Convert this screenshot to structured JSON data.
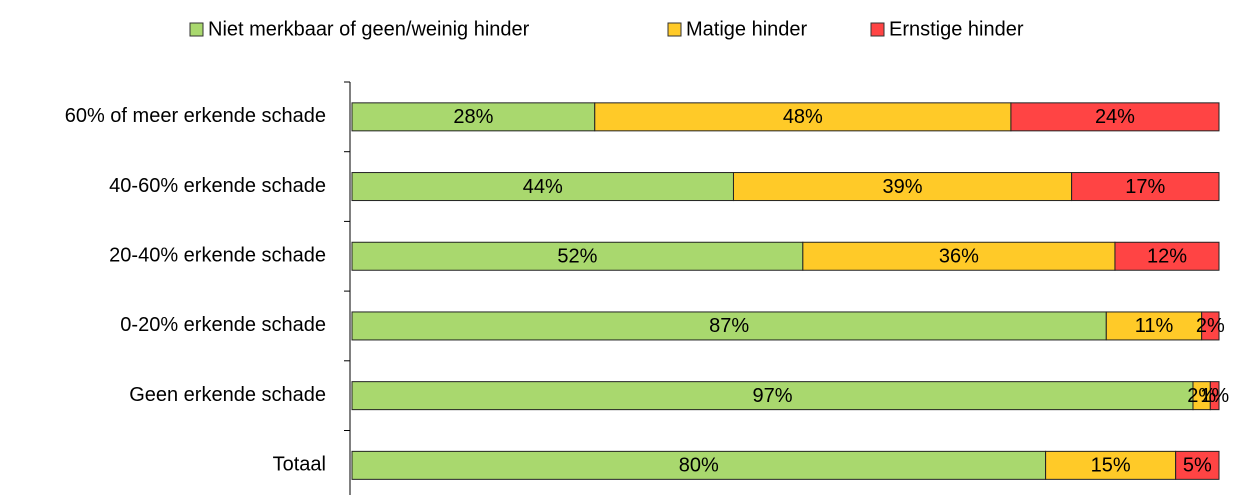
{
  "chart_data": {
    "type": "bar",
    "orientation": "horizontal",
    "stacked": true,
    "categories": [
      "60% of meer erkende schade",
      "40-60% erkende schade",
      "20-40% erkende schade",
      "0-20% erkende schade",
      "Geen erkende schade",
      "Totaal"
    ],
    "series": [
      {
        "name": "Niet merkbaar of geen/weinig hinder",
        "color": "#a9d86e",
        "values": [
          28,
          44,
          52,
          87,
          97,
          80
        ],
        "value_labels": [
          "28%",
          "44%",
          "52%",
          "87%",
          "97%",
          "80%"
        ]
      },
      {
        "name": "Matige hinder",
        "color": "#ffca28",
        "values": [
          48,
          39,
          36,
          11,
          2,
          15
        ],
        "value_labels": [
          "48%",
          "39%",
          "36%",
          "11%",
          "2%",
          "15%"
        ]
      },
      {
        "name": "Ernstige hinder",
        "color": "#ff4444",
        "values": [
          24,
          17,
          12,
          2,
          1,
          5
        ],
        "value_labels": [
          "24%",
          "17%",
          "12%",
          "2%",
          "1%",
          "5%"
        ]
      }
    ],
    "xlim": [
      0,
      100
    ],
    "legend": "top"
  }
}
